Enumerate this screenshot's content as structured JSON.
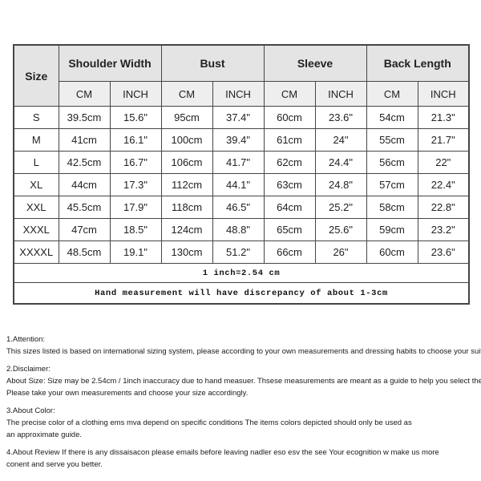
{
  "colors": {
    "header_bg": "#e4e4e4",
    "unit_bg": "#eeeeee",
    "border": "#454545",
    "text": "#222222"
  },
  "table": {
    "corner_label": "Size",
    "groups": [
      {
        "label": "Shoulder Width"
      },
      {
        "label": "Bust"
      },
      {
        "label": "Sleeve"
      },
      {
        "label": "Back Length"
      }
    ],
    "unit_headers": [
      "CM",
      "INCH"
    ],
    "rows": [
      {
        "size": "S",
        "values": [
          "39.5cm",
          "15.6\"",
          "95cm",
          "37.4\"",
          "60cm",
          "23.6\"",
          "54cm",
          "21.3\""
        ]
      },
      {
        "size": "M",
        "values": [
          "41cm",
          "16.1\"",
          "100cm",
          "39.4\"",
          "61cm",
          "24\"",
          "55cm",
          "21.7\""
        ]
      },
      {
        "size": "L",
        "values": [
          "42.5cm",
          "16.7\"",
          "106cm",
          "41.7\"",
          "62cm",
          "24.4\"",
          "56cm",
          "22\""
        ]
      },
      {
        "size": "XL",
        "values": [
          "44cm",
          "17.3\"",
          "112cm",
          "44.1\"",
          "63cm",
          "24.8\"",
          "57cm",
          "22.4\""
        ]
      },
      {
        "size": "XXL",
        "values": [
          "45.5cm",
          "17.9\"",
          "118cm",
          "46.5\"",
          "64cm",
          "25.2\"",
          "58cm",
          "22.8\""
        ]
      },
      {
        "size": "XXXL",
        "values": [
          "47cm",
          "18.5\"",
          "124cm",
          "48.8\"",
          "65cm",
          "25.6\"",
          "59cm",
          "23.2\""
        ]
      },
      {
        "size": "XXXXL",
        "values": [
          "48.5cm",
          "19.1\"",
          "130cm",
          "51.2\"",
          "66cm",
          "26\"",
          "60cm",
          "23.6\""
        ]
      }
    ],
    "footer_notes": [
      "1 inch=2.54 cm",
      "Hand measurement will have discrepancy of about 1-3cm"
    ]
  },
  "notes": {
    "attention_title": "1.Attention:",
    "attention_body": "This sizes listed is based on international sizing system, please according to your own measurements and dressing habits to choose your suitable size.",
    "disclaimer_title": "2.Disclaimer:",
    "disclaimer_body1": "About Size: Size may be 2.54cm / 1inch inaccuracy due to hand measuer. Thsese measurements are meant as a guide to help you select the correct size.",
    "disclaimer_body2": "Please take your own measurements and choose your size accordingly.",
    "color_title": "3.About Color:",
    "color_body1": "The precise color of a clothing ems mva depend on specific conditions The items colors depicted should only be used as",
    "color_body2": "an approximate guide.",
    "review_body1": "4.About Review If there is any dissaisacon please emails before leaving nadler eso esv the see Your ecognition w make us more",
    "review_body2": "conent and serve you better."
  }
}
